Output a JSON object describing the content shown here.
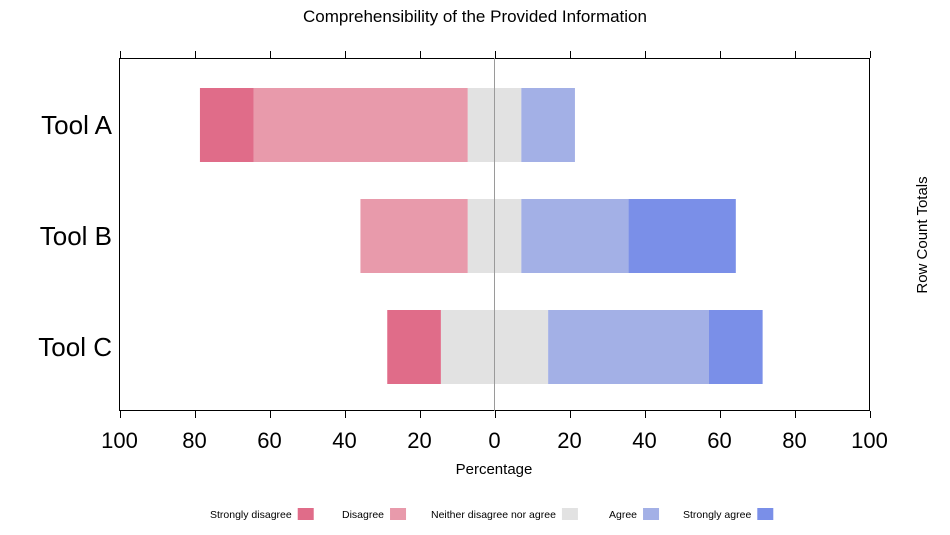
{
  "chart_data": {
    "type": "bar",
    "subtype": "diverging-stacked-likert",
    "title": "Comprehensibility of the Provided Information",
    "xlabel": "Percentage",
    "right_label": "Row Count Totals",
    "categories": [
      "Tool A",
      "Tool B",
      "Tool C"
    ],
    "xlim": [
      -100,
      100
    ],
    "x_ticks": [
      -100,
      -80,
      -60,
      -40,
      -20,
      0,
      20,
      40,
      60,
      80,
      100
    ],
    "x_tick_labels": [
      "100",
      "80",
      "60",
      "40",
      "20",
      "0",
      "20",
      "40",
      "60",
      "80",
      "100"
    ],
    "series": [
      {
        "name": "Strongly disagree",
        "color": "#e06c89",
        "values": [
          14.3,
          0,
          14.3
        ]
      },
      {
        "name": "Disagree",
        "color": "#e89aab",
        "values": [
          57.1,
          28.6,
          0
        ]
      },
      {
        "name": "Neither disagree nor agree",
        "color": "#e2e2e2",
        "values": [
          14.3,
          14.3,
          28.6
        ]
      },
      {
        "name": "Agree",
        "color": "#a3b0e6",
        "values": [
          14.3,
          28.6,
          42.9
        ]
      },
      {
        "name": "Strongly agree",
        "color": "#7a8fe8",
        "values": [
          0,
          28.6,
          14.3
        ]
      }
    ],
    "grid": false,
    "legend_position": "bottom"
  }
}
